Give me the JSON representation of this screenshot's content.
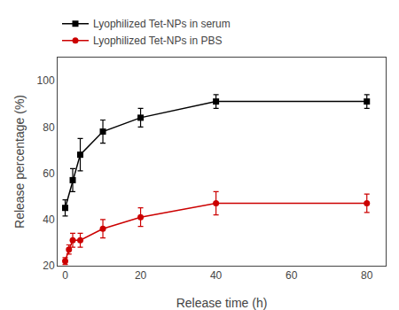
{
  "chart_data": {
    "type": "line",
    "xlabel": "Release time (h)",
    "ylabel": "Release percentage (%)",
    "series": [
      {
        "name": "Lyophilized Tet-NPs in serum",
        "color": "#000000",
        "marker": "square",
        "x": [
          0,
          2,
          4,
          10,
          20,
          40,
          80
        ],
        "values": [
          45,
          57,
          68,
          78,
          84,
          91,
          91
        ],
        "errors": [
          3.5,
          5,
          7,
          5,
          4,
          3,
          3
        ]
      },
      {
        "name": "Lyophilized Tet-NPs in PBS",
        "color": "#cc0000",
        "marker": "circle",
        "x": [
          0,
          1,
          2,
          4,
          10,
          20,
          40,
          80
        ],
        "values": [
          22,
          27,
          31,
          31,
          36,
          41,
          47,
          47
        ],
        "errors": [
          1.5,
          2,
          3,
          3,
          4,
          4,
          5,
          4
        ]
      }
    ],
    "xlim": [
      -2,
      85
    ],
    "ylim": [
      20,
      110
    ],
    "xticks": [
      0,
      20,
      40,
      60,
      80
    ],
    "yticks": [
      20,
      40,
      60,
      80,
      100
    ],
    "grid": false,
    "legend": "upper left"
  }
}
